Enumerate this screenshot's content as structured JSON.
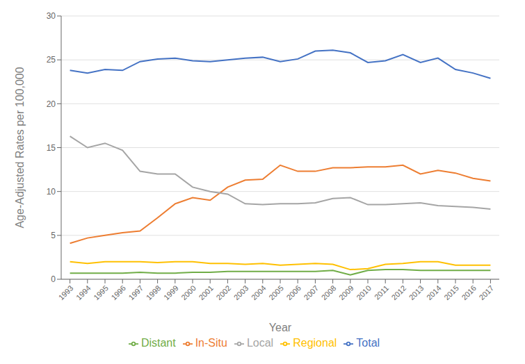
{
  "chart_data": {
    "type": "line",
    "xlabel": "Year",
    "ylabel": "Age-Adjusted  Rates per 100,000",
    "x": [
      1993,
      1994,
      1995,
      1996,
      1997,
      1998,
      1999,
      2000,
      2001,
      2002,
      2003,
      2004,
      2005,
      2006,
      2007,
      2008,
      2009,
      2010,
      2011,
      2012,
      2013,
      2014,
      2015,
      2016,
      2017
    ],
    "series": [
      {
        "name": "Total",
        "color": "#4472C4",
        "values": [
          23.8,
          23.5,
          23.9,
          23.8,
          24.8,
          25.1,
          25.2,
          24.9,
          24.8,
          25.0,
          25.2,
          25.3,
          24.8,
          25.1,
          26.0,
          26.1,
          25.8,
          24.7,
          24.9,
          25.6,
          24.7,
          25.2,
          23.9,
          23.5,
          22.9
        ]
      },
      {
        "name": "In-Situ",
        "color": "#ED7D31",
        "values": [
          4.1,
          4.7,
          5.0,
          5.3,
          5.5,
          7.0,
          8.6,
          9.3,
          9.0,
          10.5,
          11.3,
          11.4,
          13.0,
          12.3,
          12.3,
          12.7,
          12.7,
          12.8,
          12.8,
          13.0,
          12.0,
          12.4,
          12.1,
          11.5,
          11.2
        ]
      },
      {
        "name": "Local",
        "color": "#A5A5A5",
        "values": [
          16.3,
          15.0,
          15.5,
          14.7,
          12.3,
          12.0,
          12.0,
          10.5,
          10.0,
          9.7,
          8.6,
          8.5,
          8.6,
          8.6,
          8.7,
          9.2,
          9.3,
          8.5,
          8.5,
          8.6,
          8.7,
          8.4,
          8.3,
          8.2,
          8.0
        ]
      },
      {
        "name": "Regional",
        "color": "#FFC000",
        "values": [
          2.0,
          1.8,
          2.0,
          2.0,
          2.0,
          1.9,
          2.0,
          2.0,
          1.8,
          1.8,
          1.7,
          1.8,
          1.6,
          1.7,
          1.8,
          1.7,
          1.1,
          1.2,
          1.7,
          1.8,
          2.0,
          2.0,
          1.6,
          1.6,
          1.6
        ]
      },
      {
        "name": "Distant",
        "color": "#70AD47",
        "values": [
          0.7,
          0.7,
          0.7,
          0.7,
          0.8,
          0.7,
          0.7,
          0.8,
          0.8,
          0.9,
          0.9,
          0.9,
          0.9,
          0.9,
          0.9,
          1.0,
          0.5,
          1.0,
          1.1,
          1.1,
          1.0,
          1.0,
          1.0,
          1.0,
          1.0
        ]
      }
    ],
    "xlim": [
      1992.5,
      2017.5
    ],
    "xticks": [
      1993,
      1994,
      1995,
      1996,
      1997,
      1998,
      1999,
      2000,
      2001,
      2002,
      2003,
      2004,
      2005,
      2006,
      2007,
      2008,
      2009,
      2010,
      2011,
      2012,
      2013,
      2014,
      2015,
      2016,
      2017
    ],
    "ylim": [
      0,
      30
    ],
    "yticks": [
      0,
      5,
      10,
      15,
      20,
      25,
      30
    ],
    "grid": true,
    "legend": "bottom"
  }
}
